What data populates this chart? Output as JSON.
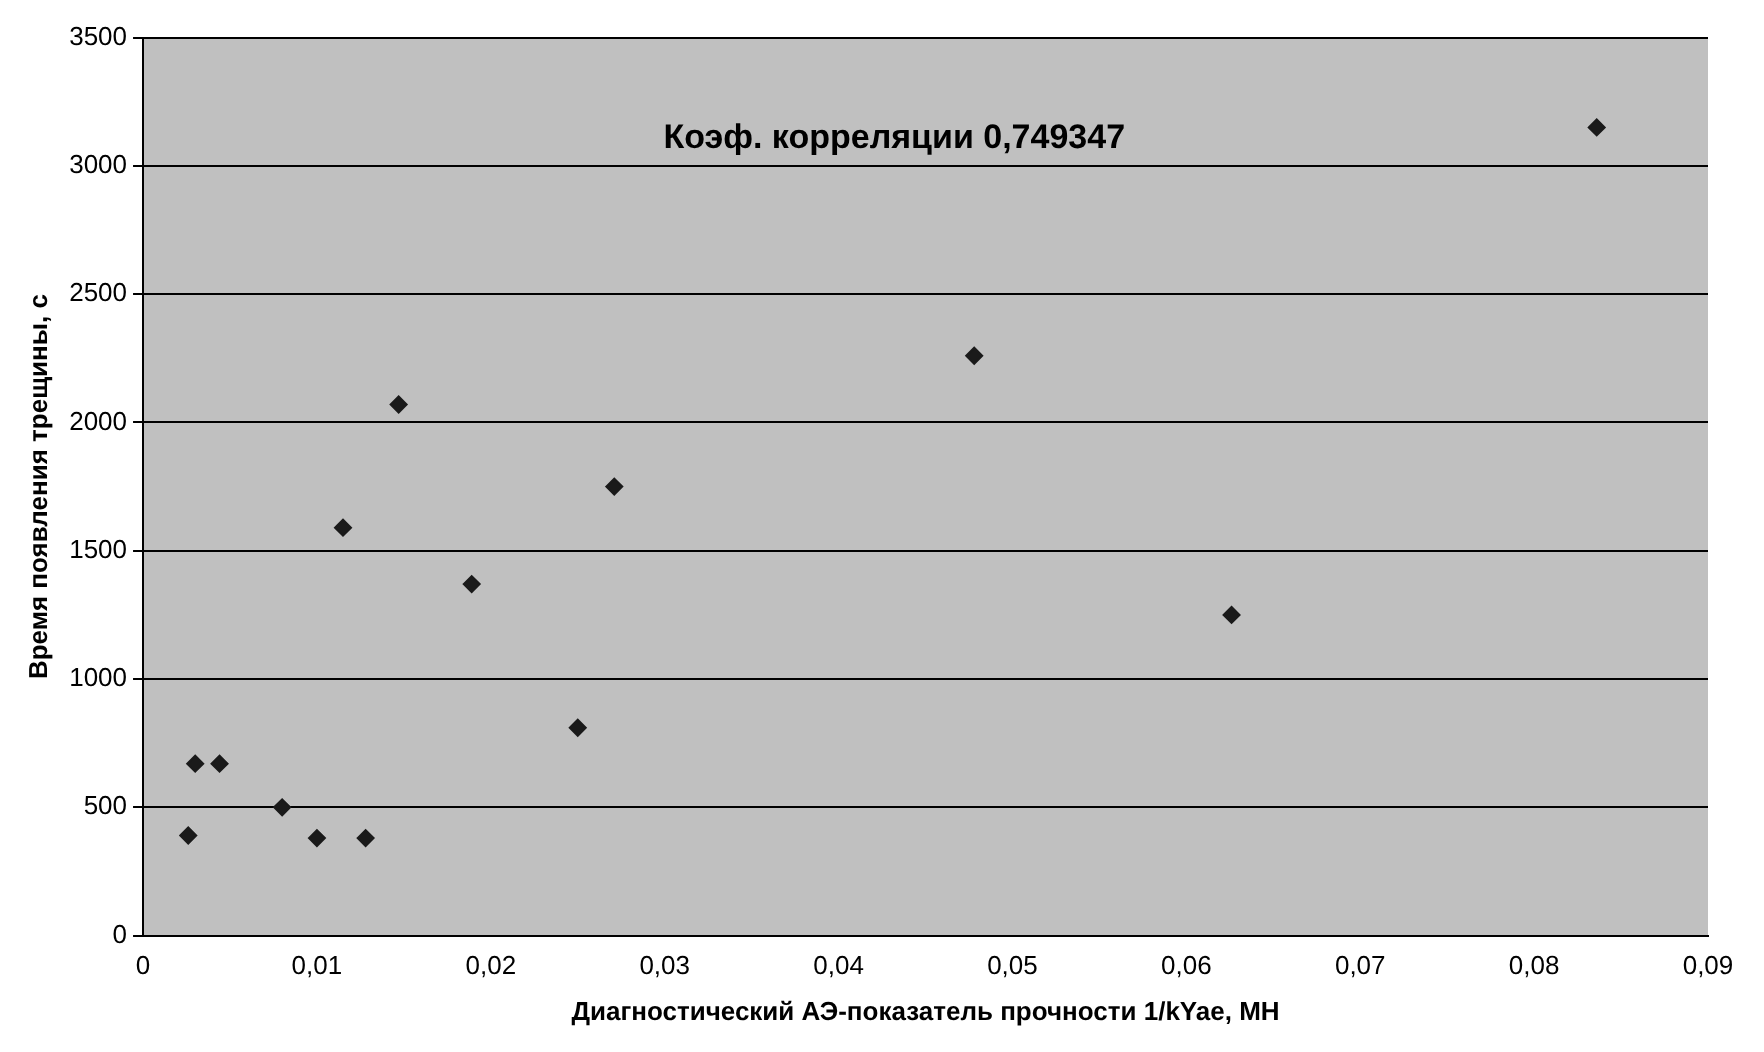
{
  "chart_data": {
    "type": "scatter",
    "xlabel": "Диагностический АЭ-показатель прочности 1/kYae, МН",
    "ylabel": "Время появления трещины, с",
    "annotations": [
      "Коэф. корреляции 0,749347"
    ],
    "x": [
      0.0026,
      0.003,
      0.0044,
      0.008,
      0.01,
      0.0128,
      0.0115,
      0.0147,
      0.0189,
      0.025,
      0.0271,
      0.0478,
      0.0626,
      0.0836
    ],
    "series": [
      {
        "color": "#1a1a1a",
        "values": [
          390,
          670,
          670,
          500,
          380,
          380,
          1590,
          2070,
          1370,
          810,
          1750,
          2260,
          1250,
          3150
        ]
      }
    ],
    "xlim": [
      0,
      0.09
    ],
    "xticks": [
      0,
      {
        "value": 0.01,
        "label": "0,01"
      },
      {
        "value": 0.02,
        "label": "0,02"
      },
      {
        "value": 0.03,
        "label": "0,03"
      },
      {
        "value": 0.04,
        "label": "0,04"
      },
      {
        "value": 0.05,
        "label": "0,05"
      },
      {
        "value": 0.06,
        "label": "0,06"
      },
      {
        "value": 0.07,
        "label": "0,07"
      },
      {
        "value": 0.08,
        "label": "0,08"
      },
      {
        "value": 0.09,
        "label": "0,09"
      }
    ],
    "ylim": [
      0,
      3500
    ],
    "yticks": [
      0,
      500,
      1000,
      1500,
      2000,
      2500,
      3000,
      3500
    ],
    "grid": "y",
    "legend": false,
    "marker": "diamond"
  }
}
